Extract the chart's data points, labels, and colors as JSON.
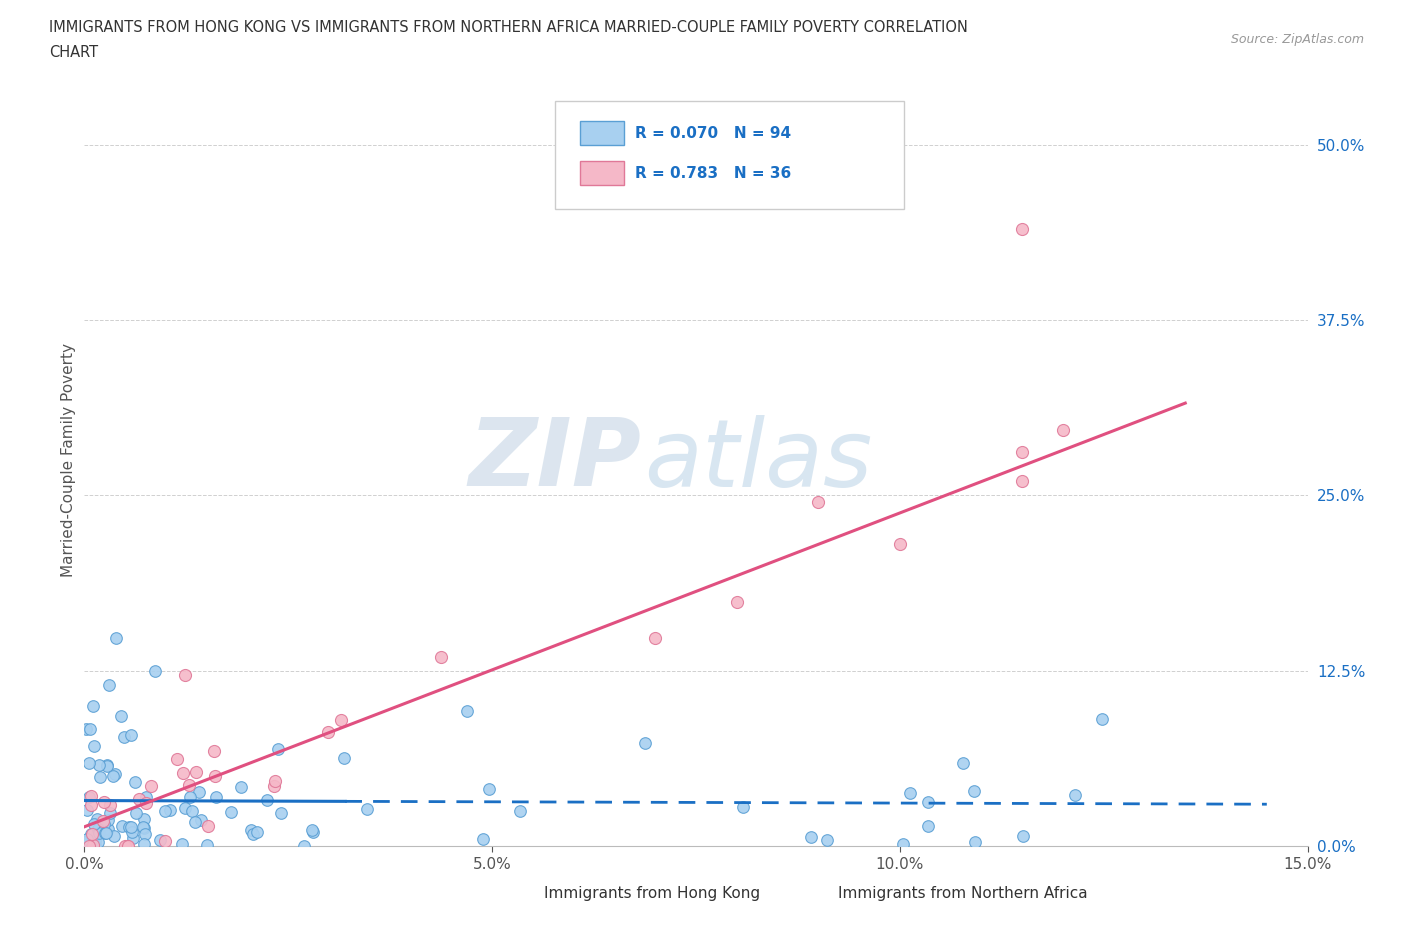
{
  "title_line1": "IMMIGRANTS FROM HONG KONG VS IMMIGRANTS FROM NORTHERN AFRICA MARRIED-COUPLE FAMILY POVERTY CORRELATION",
  "title_line2": "CHART",
  "source_text": "Source: ZipAtlas.com",
  "hk_R": 0.07,
  "hk_N": 94,
  "na_R": 0.783,
  "na_N": 36,
  "hk_color": "#a8d0f0",
  "hk_line_color": "#1a6fc4",
  "na_color": "#f5b8c8",
  "na_line_color": "#e05080",
  "hk_edge_color": "#5a9fd4",
  "na_edge_color": "#e07898",
  "legend_text_color": "#1a6fc4",
  "ylabel": "Married-Couple Family Poverty",
  "xlim": [
    0.0,
    0.15
  ],
  "ylim": [
    0.0,
    0.55
  ],
  "x_ticks": [
    0.0,
    0.05,
    0.1,
    0.15
  ],
  "x_tick_labels": [
    "0.0%",
    "5.0%",
    "10.0%",
    "15.0%"
  ],
  "y_ticks": [
    0.0,
    0.125,
    0.25,
    0.375,
    0.5
  ],
  "y_tick_labels": [
    "0.0%",
    "12.5%",
    "25.0%",
    "37.5%",
    "50.0%"
  ],
  "watermark_zip": "ZIP",
  "watermark_atlas": "atlas",
  "legend_items": [
    "Immigrants from Hong Kong",
    "Immigrants from Northern Africa"
  ],
  "hk_seed": 42,
  "na_seed": 17,
  "grid_color": "#d0d0d0",
  "bottom_line_color": "#aaaaaa"
}
